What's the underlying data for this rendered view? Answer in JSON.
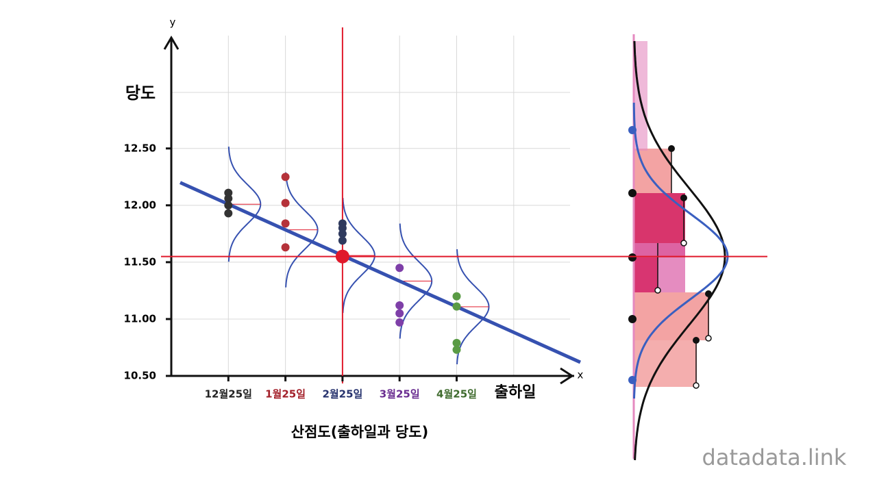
{
  "chart_data": {
    "type": "scatter",
    "title": "산점도(출하일과 당도)",
    "x_label": "출하일",
    "y_label": "당도",
    "x_axis_letter": "x",
    "y_axis_letter": "y",
    "categories": [
      "12월25일",
      "1월25일",
      "2월25일",
      "3월25일",
      "4월25일"
    ],
    "category_colors": [
      "#222222",
      "#a3202a",
      "#27336e",
      "#6a2d91",
      "#3f6b2e"
    ],
    "series": [
      {
        "color": "#333333",
        "values": [
          12.11,
          12.06,
          12.0,
          11.93
        ]
      },
      {
        "color": "#b5323a",
        "values": [
          12.25,
          12.02,
          11.84,
          11.63
        ]
      },
      {
        "color": "#2f3a5e",
        "values": [
          11.84,
          11.8,
          11.75,
          11.69
        ]
      },
      {
        "color": "#7e3fa8",
        "values": [
          11.45,
          11.12,
          11.05,
          10.97
        ]
      },
      {
        "color": "#5a9b45",
        "values": [
          11.2,
          11.11,
          10.79,
          10.73
        ]
      }
    ],
    "trend": {
      "color": "#3651b0",
      "values": [
        12.2,
        10.62
      ]
    },
    "mean": {
      "value": 11.55,
      "color": "#e0192b"
    },
    "ylim": [
      10.5,
      13.45
    ],
    "yticks": [
      {
        "value": 10.5,
        "label": "10.50"
      },
      {
        "value": 11,
        "label": "11.00"
      },
      {
        "value": 11.5,
        "label": "11.50"
      },
      {
        "value": 12,
        "label": "12.00"
      },
      {
        "value": 12.5,
        "label": "12.50"
      }
    ],
    "grid": true,
    "watermark": "datadata.link"
  }
}
